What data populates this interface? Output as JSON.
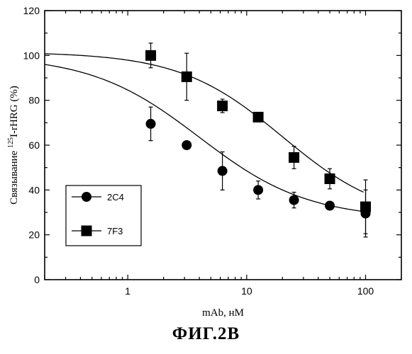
{
  "chart_data": {
    "type": "scatter",
    "xlabel": "mAb, нМ",
    "ylabel_prefix": "Связывание ",
    "ylabel_sup": "125",
    "ylabel_suffix": "I-rHRG (%)",
    "x_scale": "log",
    "xlim": [
      0.2,
      200
    ],
    "ylim": [
      0,
      120
    ],
    "x_ticks": [
      1,
      10,
      100
    ],
    "y_ticks": [
      0,
      20,
      40,
      60,
      80,
      100,
      120
    ],
    "legend_position": "bottom-left",
    "series": [
      {
        "name": "2C4",
        "marker": "circle",
        "points": [
          {
            "x": 1.56,
            "y": 69.5,
            "err": 7.5
          },
          {
            "x": 3.13,
            "y": 60.0,
            "err": 0
          },
          {
            "x": 6.25,
            "y": 48.5,
            "err": 8.5
          },
          {
            "x": 12.5,
            "y": 40.0,
            "err": 4.0
          },
          {
            "x": 25,
            "y": 35.5,
            "err": 3.5
          },
          {
            "x": 50,
            "y": 33.0,
            "err": 0
          },
          {
            "x": 100,
            "y": 29.5,
            "err": 10.5
          }
        ],
        "fit": {
          "top": 100,
          "bottom": 27,
          "ic50": 4.0,
          "hill": 0.95
        }
      },
      {
        "name": "7F3",
        "marker": "square",
        "points": [
          {
            "x": 1.56,
            "y": 100.0,
            "err": 5.5
          },
          {
            "x": 3.13,
            "y": 90.5,
            "err": 10.5
          },
          {
            "x": 6.25,
            "y": 77.5,
            "err": 3.0
          },
          {
            "x": 12.5,
            "y": 72.5,
            "err": 0
          },
          {
            "x": 25,
            "y": 54.5,
            "err": 5.0
          },
          {
            "x": 50,
            "y": 45.0,
            "err": 4.5
          },
          {
            "x": 100,
            "y": 32.5,
            "err": 12.0
          }
        ],
        "fit": {
          "top": 101.5,
          "bottom": 26,
          "ic50": 20,
          "hill": 1.0
        }
      }
    ]
  },
  "figure_caption": "ФИГ.2В"
}
